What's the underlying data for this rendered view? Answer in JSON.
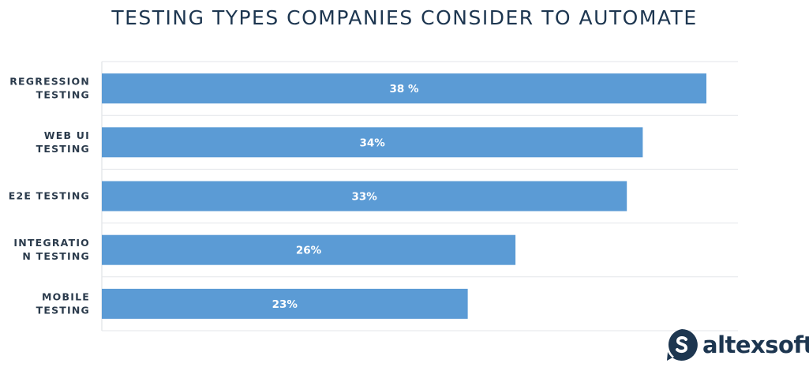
{
  "chart_data": {
    "type": "bar",
    "orientation": "horizontal",
    "title": "TESTING TYPES COMPANIES CONSIDER TO AUTOMATE",
    "categories": [
      [
        "REGRESSION",
        "TESTING"
      ],
      [
        "WEB UI",
        "TESTING"
      ],
      [
        "E2E TESTING"
      ],
      [
        "INTEGRATIO",
        "N TESTING"
      ],
      [
        "MOBILE",
        "TESTING"
      ]
    ],
    "values": [
      38,
      34,
      33,
      26,
      23
    ],
    "data_labels": [
      "38 %",
      "34%",
      "33%",
      "26%",
      "23%"
    ],
    "xlim": [
      0,
      40
    ],
    "bar_color": "#5b9bd5",
    "grid": true,
    "legend": "none"
  },
  "brand": {
    "name": "altexsoft",
    "color": "#1d3650",
    "logo_icon": "altexsoft-logo-icon"
  }
}
